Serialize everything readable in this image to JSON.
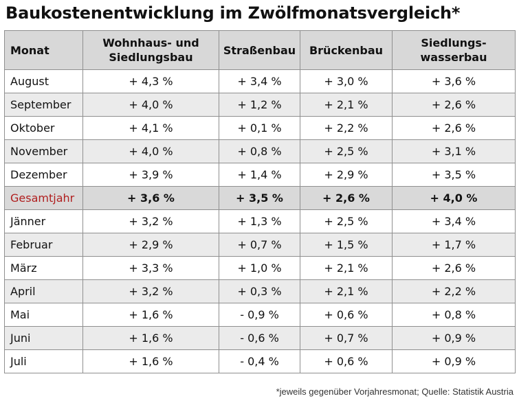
{
  "title": "Baukostenentwicklung im Zwölfmonatsvergleich*",
  "table": {
    "headers": [
      "Monat",
      "Wohnhaus- und Siedlungsbau",
      "Straßenbau",
      "Brückenbau",
      "Siedlungs-wasserbau"
    ],
    "rows": [
      {
        "month": "August",
        "values": [
          "+ 4,3 %",
          "+ 3,4 %",
          "+ 3,0 %",
          "+ 3,6 %"
        ]
      },
      {
        "month": "September",
        "values": [
          "+ 4,0 %",
          "+ 1,2 %",
          "+ 2,1 %",
          "+ 2,6 %"
        ]
      },
      {
        "month": "Oktober",
        "values": [
          "+ 4,1 %",
          "+ 0,1 %",
          "+ 2,2 %",
          "+ 2,6 %"
        ]
      },
      {
        "month": "November",
        "values": [
          "+ 4,0 %",
          "+ 0,8 %",
          "+ 2,5 %",
          "+ 3,1 %"
        ]
      },
      {
        "month": "Dezember",
        "values": [
          "+ 3,9 %",
          "+ 1,4 %",
          "+ 2,9 %",
          "+ 3,5 %"
        ]
      },
      {
        "month": "Gesamtjahr",
        "values": [
          "+ 3,6 %",
          "+ 3,5 %",
          "+ 2,6 %",
          "+ 4,0 %"
        ]
      },
      {
        "month": "Jänner",
        "values": [
          "+ 3,2 %",
          "+ 1,3 %",
          "+ 2,5 %",
          "+ 3,4 %"
        ]
      },
      {
        "month": "Februar",
        "values": [
          "+ 2,9 %",
          "+ 0,7 %",
          "+ 1,5 %",
          "+ 1,7 %"
        ]
      },
      {
        "month": "März",
        "values": [
          "+ 3,3 %",
          "+ 1,0 %",
          "+ 2,1 %",
          "+ 2,6 %"
        ]
      },
      {
        "month": "April",
        "values": [
          "+ 3,2 %",
          "+ 0,3 %",
          "+ 2,1 %",
          "+ 2,2 %"
        ]
      },
      {
        "month": "Mai",
        "values": [
          "+ 1,6 %",
          "- 0,9 %",
          "+ 0,6 %",
          "+ 0,8 %"
        ]
      },
      {
        "month": "Juni",
        "values": [
          "+ 1,6 %",
          "- 0,6 %",
          "+ 0,7 %",
          "+ 0,9 %"
        ]
      },
      {
        "month": "Juli",
        "values": [
          "+ 1,6 %",
          "- 0,4 %",
          "+ 0,6 %",
          "+ 0,9 %"
        ]
      }
    ]
  },
  "footnote": "*jeweils gegenüber Vorjahresmonat; Quelle: Statistik Austria",
  "colors": {
    "header_bg": "#d8d8d8",
    "alt_row_bg": "#ebebeb",
    "total_row_bg": "#d9d9d9",
    "total_label": "#b01e1e",
    "border": "#8f8f8f"
  }
}
